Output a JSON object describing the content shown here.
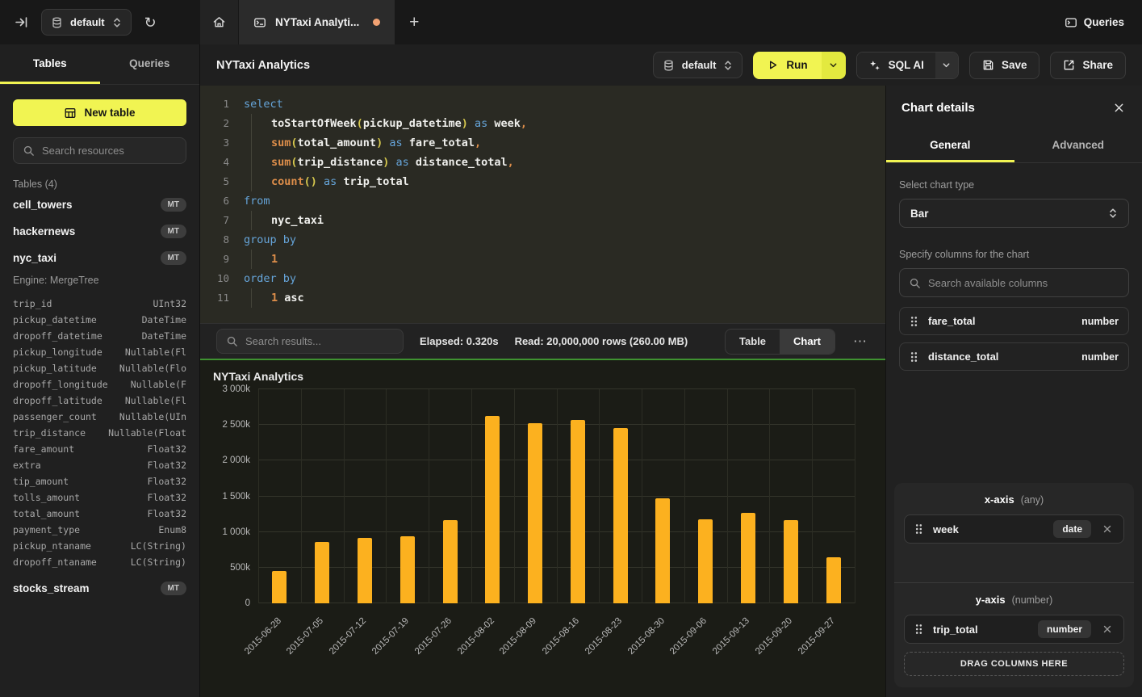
{
  "topbar": {
    "database_selector": "default",
    "tab_title": "NYTaxi Analyti...",
    "queries_button": "Queries"
  },
  "sidebar": {
    "tabs": [
      "Tables",
      "Queries"
    ],
    "active_tab": "Tables",
    "new_table_button": "New table",
    "search_placeholder": "Search resources",
    "section_header": "Tables (4)",
    "tables": [
      {
        "name": "cell_towers",
        "badge": "MT"
      },
      {
        "name": "hackernews",
        "badge": "MT"
      },
      {
        "name": "nyc_taxi",
        "badge": "MT",
        "engine": "Engine: MergeTree",
        "columns": [
          {
            "name": "trip_id",
            "type": "UInt32"
          },
          {
            "name": "pickup_datetime",
            "type": "DateTime"
          },
          {
            "name": "dropoff_datetime",
            "type": "DateTime"
          },
          {
            "name": "pickup_longitude",
            "type": "Nullable(Fl"
          },
          {
            "name": "pickup_latitude",
            "type": "Nullable(Flo"
          },
          {
            "name": "dropoff_longitude",
            "type": "Nullable(F"
          },
          {
            "name": "dropoff_latitude",
            "type": "Nullable(Fl"
          },
          {
            "name": "passenger_count",
            "type": "Nullable(UIn"
          },
          {
            "name": "trip_distance",
            "type": "Nullable(Float"
          },
          {
            "name": "fare_amount",
            "type": "Float32"
          },
          {
            "name": "extra",
            "type": "Float32"
          },
          {
            "name": "tip_amount",
            "type": "Float32"
          },
          {
            "name": "tolls_amount",
            "type": "Float32"
          },
          {
            "name": "total_amount",
            "type": "Float32"
          },
          {
            "name": "payment_type",
            "type": "Enum8"
          },
          {
            "name": "pickup_ntaname",
            "type": "LC(String)"
          },
          {
            "name": "dropoff_ntaname",
            "type": "LC(String)"
          }
        ]
      },
      {
        "name": "stocks_stream",
        "badge": "MT"
      }
    ]
  },
  "toolbar": {
    "title": "NYTaxi Analytics",
    "database_selector": "default",
    "run_button": "Run",
    "sql_ai_button": "SQL AI",
    "save_button": "Save",
    "share_button": "Share"
  },
  "editor": {
    "lines": [
      {
        "indent": false,
        "tokens": [
          [
            "kw",
            "select"
          ]
        ]
      },
      {
        "indent": true,
        "tokens": [
          [
            "fnw",
            "toStartOfWeek"
          ],
          [
            "paren",
            "("
          ],
          [
            "id",
            "pickup_datetime"
          ],
          [
            "paren",
            ")"
          ],
          [
            "kw",
            " as "
          ],
          [
            "id",
            "week"
          ],
          [
            "punct",
            ","
          ]
        ]
      },
      {
        "indent": true,
        "tokens": [
          [
            "fn",
            "sum"
          ],
          [
            "paren",
            "("
          ],
          [
            "id",
            "total_amount"
          ],
          [
            "paren",
            ")"
          ],
          [
            "kw",
            " as "
          ],
          [
            "id",
            "fare_total"
          ],
          [
            "punct",
            ","
          ]
        ]
      },
      {
        "indent": true,
        "tokens": [
          [
            "fn",
            "sum"
          ],
          [
            "paren",
            "("
          ],
          [
            "id",
            "trip_distance"
          ],
          [
            "paren",
            ")"
          ],
          [
            "kw",
            " as "
          ],
          [
            "id",
            "distance_total"
          ],
          [
            "punct",
            ","
          ]
        ]
      },
      {
        "indent": true,
        "tokens": [
          [
            "fn",
            "count"
          ],
          [
            "paren",
            "()"
          ],
          [
            "kw",
            " as "
          ],
          [
            "id",
            "trip_total"
          ]
        ]
      },
      {
        "indent": false,
        "tokens": [
          [
            "kw",
            "from"
          ]
        ]
      },
      {
        "indent": true,
        "tokens": [
          [
            "id",
            "nyc_taxi"
          ]
        ]
      },
      {
        "indent": false,
        "tokens": [
          [
            "kw",
            "group by"
          ]
        ]
      },
      {
        "indent": true,
        "tokens": [
          [
            "num",
            "1"
          ]
        ]
      },
      {
        "indent": false,
        "tokens": [
          [
            "kw",
            "order by"
          ]
        ]
      },
      {
        "indent": true,
        "tokens": [
          [
            "num",
            "1"
          ],
          [
            "id",
            " asc"
          ]
        ]
      }
    ]
  },
  "results_bar": {
    "search_placeholder": "Search results...",
    "elapsed": "Elapsed: 0.320s",
    "read": "Read: 20,000,000 rows (260.00 MB)",
    "toggle": [
      "Table",
      "Chart"
    ],
    "active_view": "Chart"
  },
  "chart_data": {
    "type": "bar",
    "title": "NYTaxi Analytics",
    "x_field": "week",
    "y_field": "trip_total",
    "categories": [
      "2015-06-28",
      "2015-07-05",
      "2015-07-12",
      "2015-07-19",
      "2015-07-26",
      "2015-08-02",
      "2015-08-09",
      "2015-08-16",
      "2015-08-23",
      "2015-08-30",
      "2015-09-06",
      "2015-09-13",
      "2015-09-20",
      "2015-09-27"
    ],
    "values": [
      450000,
      860000,
      915000,
      935000,
      1165000,
      2630000,
      2520000,
      2570000,
      2455000,
      1470000,
      1175000,
      1265000,
      1165000,
      650000
    ],
    "ylim": [
      0,
      3000000
    ],
    "y_ticks": [
      "0",
      "500k",
      "1 000k",
      "1 500k",
      "2 000k",
      "2 500k",
      "3 000k"
    ],
    "bar_color": "#fcb11f",
    "grid": true,
    "legend": false
  },
  "chart_panel": {
    "title": "Chart details",
    "tabs": [
      "General",
      "Advanced"
    ],
    "active_tab": "General",
    "chart_type_label": "Select chart type",
    "chart_type_value": "Bar",
    "columns_label": "Specify columns for the chart",
    "search_placeholder": "Search available columns",
    "available_columns": [
      {
        "name": "fare_total",
        "type": "number"
      },
      {
        "name": "distance_total",
        "type": "number"
      }
    ],
    "x_axis": {
      "label": "x-axis",
      "hint": "(any)",
      "columns": [
        {
          "name": "week",
          "type": "date"
        }
      ]
    },
    "y_axis": {
      "label": "y-axis",
      "hint": "(number)",
      "columns": [
        {
          "name": "trip_total",
          "type": "number"
        }
      ]
    },
    "drop_zone_label": "DRAG COLUMNS HERE"
  },
  "colors": {
    "accent_yellow": "#f1f452",
    "bar_orange": "#fcb11f",
    "run_green_divider": "#3f9231",
    "tab_dot_orange": "#f2a273"
  }
}
